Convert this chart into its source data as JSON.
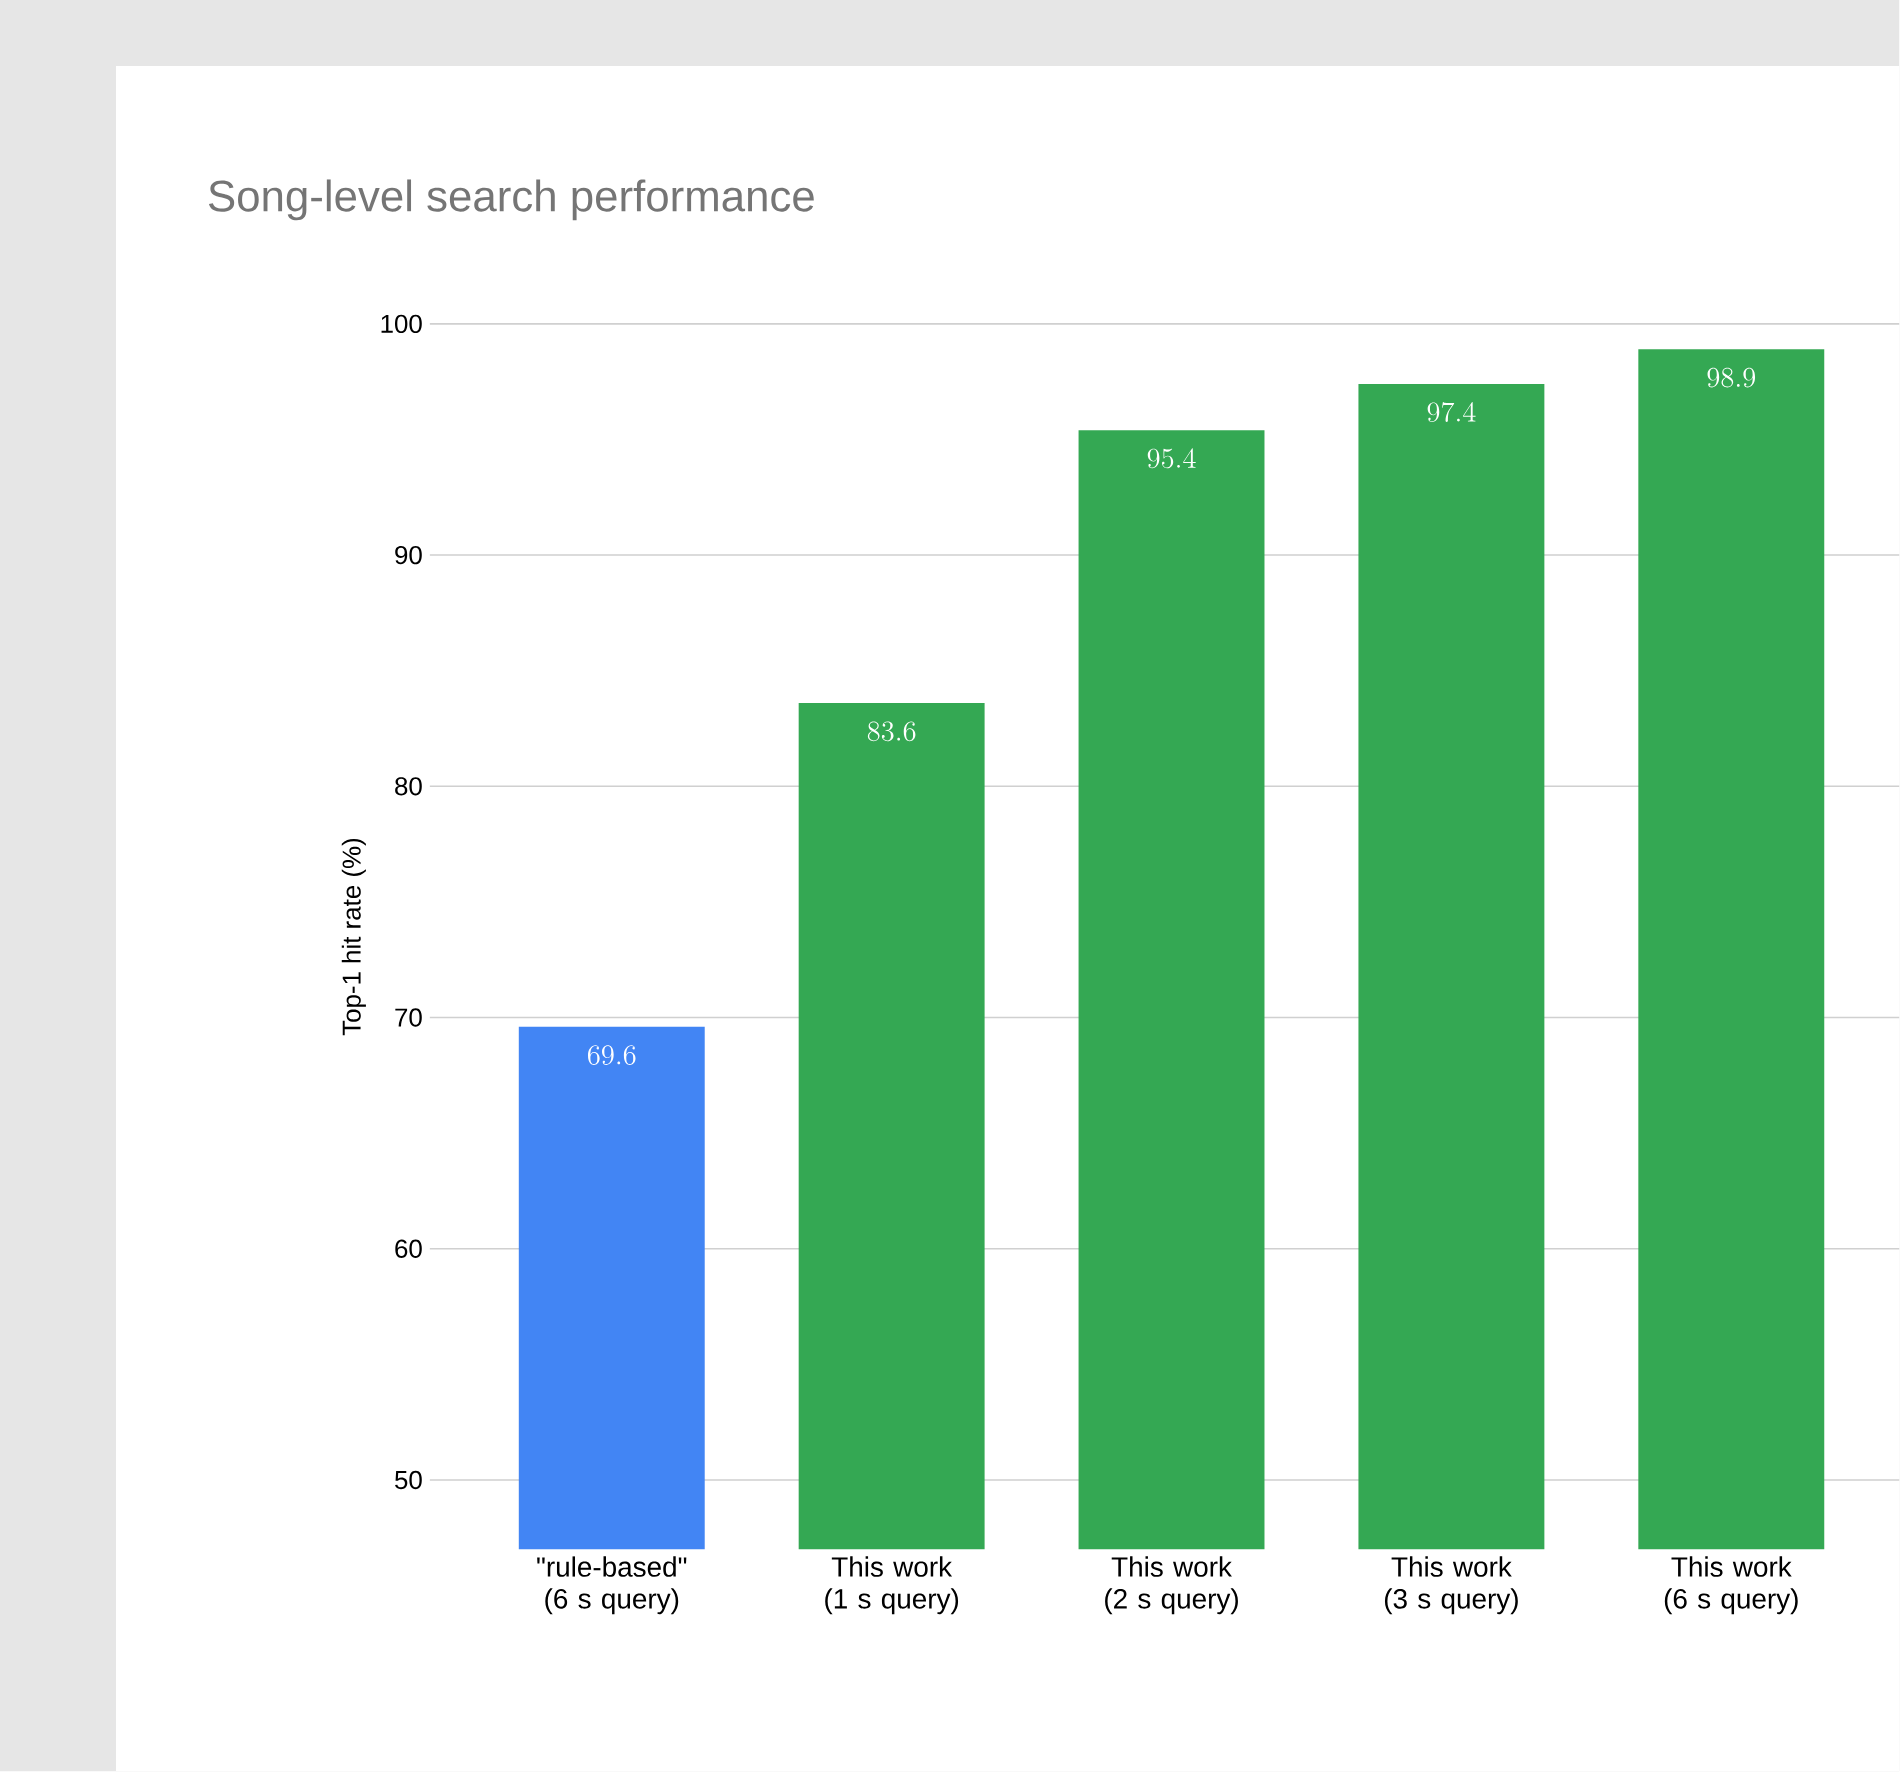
{
  "chart_data": {
    "type": "bar",
    "title": "Song-level search performance",
    "ylabel": "Top-1 hit rate (%)",
    "categories": [
      "\"rule-based\" (6 s query)",
      "This work (1 s query)",
      "This work (2 s query)",
      "This work (3 s query)",
      "This work (6 s query)"
    ],
    "values": [
      69.6,
      83.6,
      95.4,
      97.4,
      98.9
    ],
    "colors": [
      "#4285f4",
      "#34a853",
      "#34a853",
      "#34a853",
      "#34a853"
    ],
    "ylim": [
      47,
      100
    ],
    "yticks": [
      50,
      60,
      70,
      80,
      90,
      100
    ],
    "grid": "y",
    "data_labels": true
  }
}
